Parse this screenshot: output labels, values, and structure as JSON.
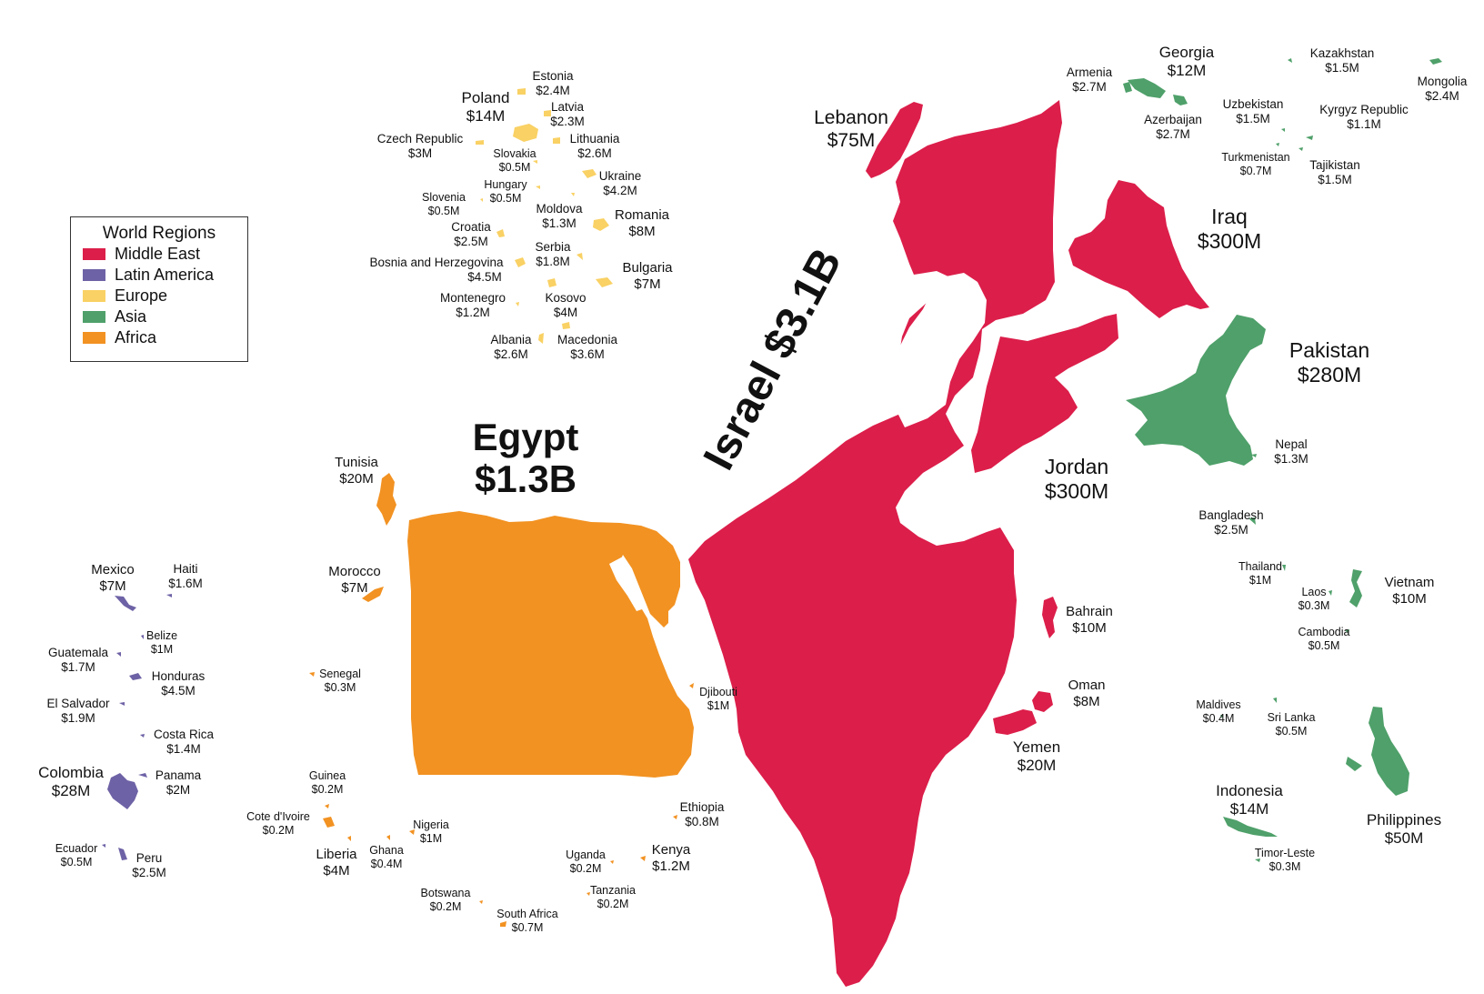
{
  "colors": {
    "middle_east": "#DC1E4A",
    "latin_america": "#6E62A6",
    "europe": "#F9D164",
    "asia": "#4FA06A",
    "africa": "#F29222"
  },
  "legend": {
    "title": "World Regions",
    "items": [
      {
        "label": "Middle East",
        "color": "#DC1E4A"
      },
      {
        "label": "Latin America",
        "color": "#6E62A6"
      },
      {
        "label": "Europe",
        "color": "#F9D164"
      },
      {
        "label": "Asia",
        "color": "#4FA06A"
      },
      {
        "label": "Africa",
        "color": "#F29222"
      }
    ]
  },
  "labels": {
    "israel": "Israel  $3.1B",
    "egypt": {
      "name": "Egypt",
      "amount": "$1.3B"
    },
    "lebanon": {
      "name": "Lebanon",
      "amount": "$75M"
    },
    "iraq": {
      "name": "Iraq",
      "amount": "$300M"
    },
    "jordan": {
      "name": "Jordan",
      "amount": "$300M"
    },
    "pakistan": {
      "name": "Pakistan",
      "amount": "$280M"
    },
    "bahrain": {
      "name": "Bahrain",
      "amount": "$10M"
    },
    "oman": {
      "name": "Oman",
      "amount": "$8M"
    },
    "yemen": {
      "name": "Yemen",
      "amount": "$20M"
    },
    "georgia": {
      "name": "Georgia",
      "amount": "$12M"
    },
    "armenia": {
      "name": "Armenia",
      "amount": "$2.7M"
    },
    "azerbaijan": {
      "name": "Azerbaijan",
      "amount": "$2.7M"
    },
    "kazakhstan": {
      "name": "Kazakhstan",
      "amount": "$1.5M"
    },
    "mongolia": {
      "name": "Mongolia",
      "amount": "$2.4M"
    },
    "uzbekistan": {
      "name": "Uzbekistan",
      "amount": "$1.5M"
    },
    "kyrgyz": {
      "name": "Kyrgyz Republic",
      "amount": "$1.1M"
    },
    "turkmenistan": {
      "name": "Turkmenistan",
      "amount": "$0.7M"
    },
    "tajikistan": {
      "name": "Tajikistan",
      "amount": "$1.5M"
    },
    "nepal": {
      "name": "Nepal",
      "amount": "$1.3M"
    },
    "bangladesh": {
      "name": "Bangladesh",
      "amount": "$2.5M"
    },
    "thailand": {
      "name": "Thailand",
      "amount": "$1M"
    },
    "laos": {
      "name": "Laos",
      "amount": "$0.3M"
    },
    "vietnam": {
      "name": "Vietnam",
      "amount": "$10M"
    },
    "cambodia": {
      "name": "Cambodia",
      "amount": "$0.5M"
    },
    "maldives": {
      "name": "Maldives",
      "amount": "$0.4M"
    },
    "srilanka": {
      "name": "Sri Lanka",
      "amount": "$0.5M"
    },
    "indonesia": {
      "name": "Indonesia",
      "amount": "$14M"
    },
    "timorleste": {
      "name": "Timor-Leste",
      "amount": "$0.3M"
    },
    "philippines": {
      "name": "Philippines",
      "amount": "$50M"
    },
    "estonia": {
      "name": "Estonia",
      "amount": "$2.4M"
    },
    "poland": {
      "name": "Poland",
      "amount": "$14M"
    },
    "latvia": {
      "name": "Latvia",
      "amount": "$2.3M"
    },
    "czech": {
      "name": "Czech Republic",
      "amount": "$3M"
    },
    "lithuania": {
      "name": "Lithuania",
      "amount": "$2.6M"
    },
    "slovakia": {
      "name": "Slovakia",
      "amount": "$0.5M"
    },
    "ukraine": {
      "name": "Ukraine",
      "amount": "$4.2M"
    },
    "hungary": {
      "name": "Hungary",
      "amount": "$0.5M"
    },
    "slovenia": {
      "name": "Slovenia",
      "amount": "$0.5M"
    },
    "moldova": {
      "name": "Moldova",
      "amount": "$1.3M"
    },
    "romania": {
      "name": "Romania",
      "amount": "$8M"
    },
    "croatia": {
      "name": "Croatia",
      "amount": "$2.5M"
    },
    "serbia": {
      "name": "Serbia",
      "amount": "$1.8M"
    },
    "bosnia": {
      "name": "Bosnia and  Herzegovina",
      "amount": "$4.5M"
    },
    "bulgaria": {
      "name": "Bulgaria",
      "amount": "$7M"
    },
    "montenegro": {
      "name": "Montenegro",
      "amount": "$1.2M"
    },
    "kosovo": {
      "name": "Kosovo",
      "amount": "$4M"
    },
    "albania": {
      "name": "Albania",
      "amount": "$2.6M"
    },
    "macedonia": {
      "name": "Macedonia",
      "amount": "$3.6M"
    },
    "tunisia": {
      "name": "Tunisia",
      "amount": "$20M"
    },
    "morocco": {
      "name": "Morocco",
      "amount": "$7M"
    },
    "senegal": {
      "name": "Senegal",
      "amount": "$0.3M"
    },
    "djibouti": {
      "name": "Djibouti",
      "amount": "$1M"
    },
    "guinea": {
      "name": "Guinea",
      "amount": "$0.2M"
    },
    "cotedivoire": {
      "name": "Cote d'Ivoire",
      "amount": "$0.2M"
    },
    "nigeria": {
      "name": "Nigeria",
      "amount": "$1M"
    },
    "liberia": {
      "name": "Liberia",
      "amount": "$4M"
    },
    "ghana": {
      "name": "Ghana",
      "amount": "$0.4M"
    },
    "ethiopia": {
      "name": "Ethiopia",
      "amount": "$0.8M"
    },
    "uganda": {
      "name": "Uganda",
      "amount": "$0.2M"
    },
    "kenya": {
      "name": "Kenya",
      "amount": "$1.2M"
    },
    "tanzania": {
      "name": "Tanzania",
      "amount": "$0.2M"
    },
    "botswana": {
      "name": "Botswana",
      "amount": "$0.2M"
    },
    "southafrica": {
      "name": "South Africa",
      "amount": "$0.7M"
    },
    "mexico": {
      "name": "Mexico",
      "amount": "$7M"
    },
    "haiti": {
      "name": "Haiti",
      "amount": "$1.6M"
    },
    "belize": {
      "name": "Belize",
      "amount": "$1M"
    },
    "guatemala": {
      "name": "Guatemala",
      "amount": "$1.7M"
    },
    "honduras": {
      "name": "Honduras",
      "amount": "$4.5M"
    },
    "elsalvador": {
      "name": "El Salvador",
      "amount": "$1.9M"
    },
    "costarica": {
      "name": "Costa Rica",
      "amount": "$1.4M"
    },
    "colombia": {
      "name": "Colombia",
      "amount": "$28M"
    },
    "panama": {
      "name": "Panama",
      "amount": "$2M"
    },
    "ecuador": {
      "name": "Ecuador",
      "amount": "$0.5M"
    },
    "peru": {
      "name": "Peru",
      "amount": "$2.5M"
    }
  }
}
